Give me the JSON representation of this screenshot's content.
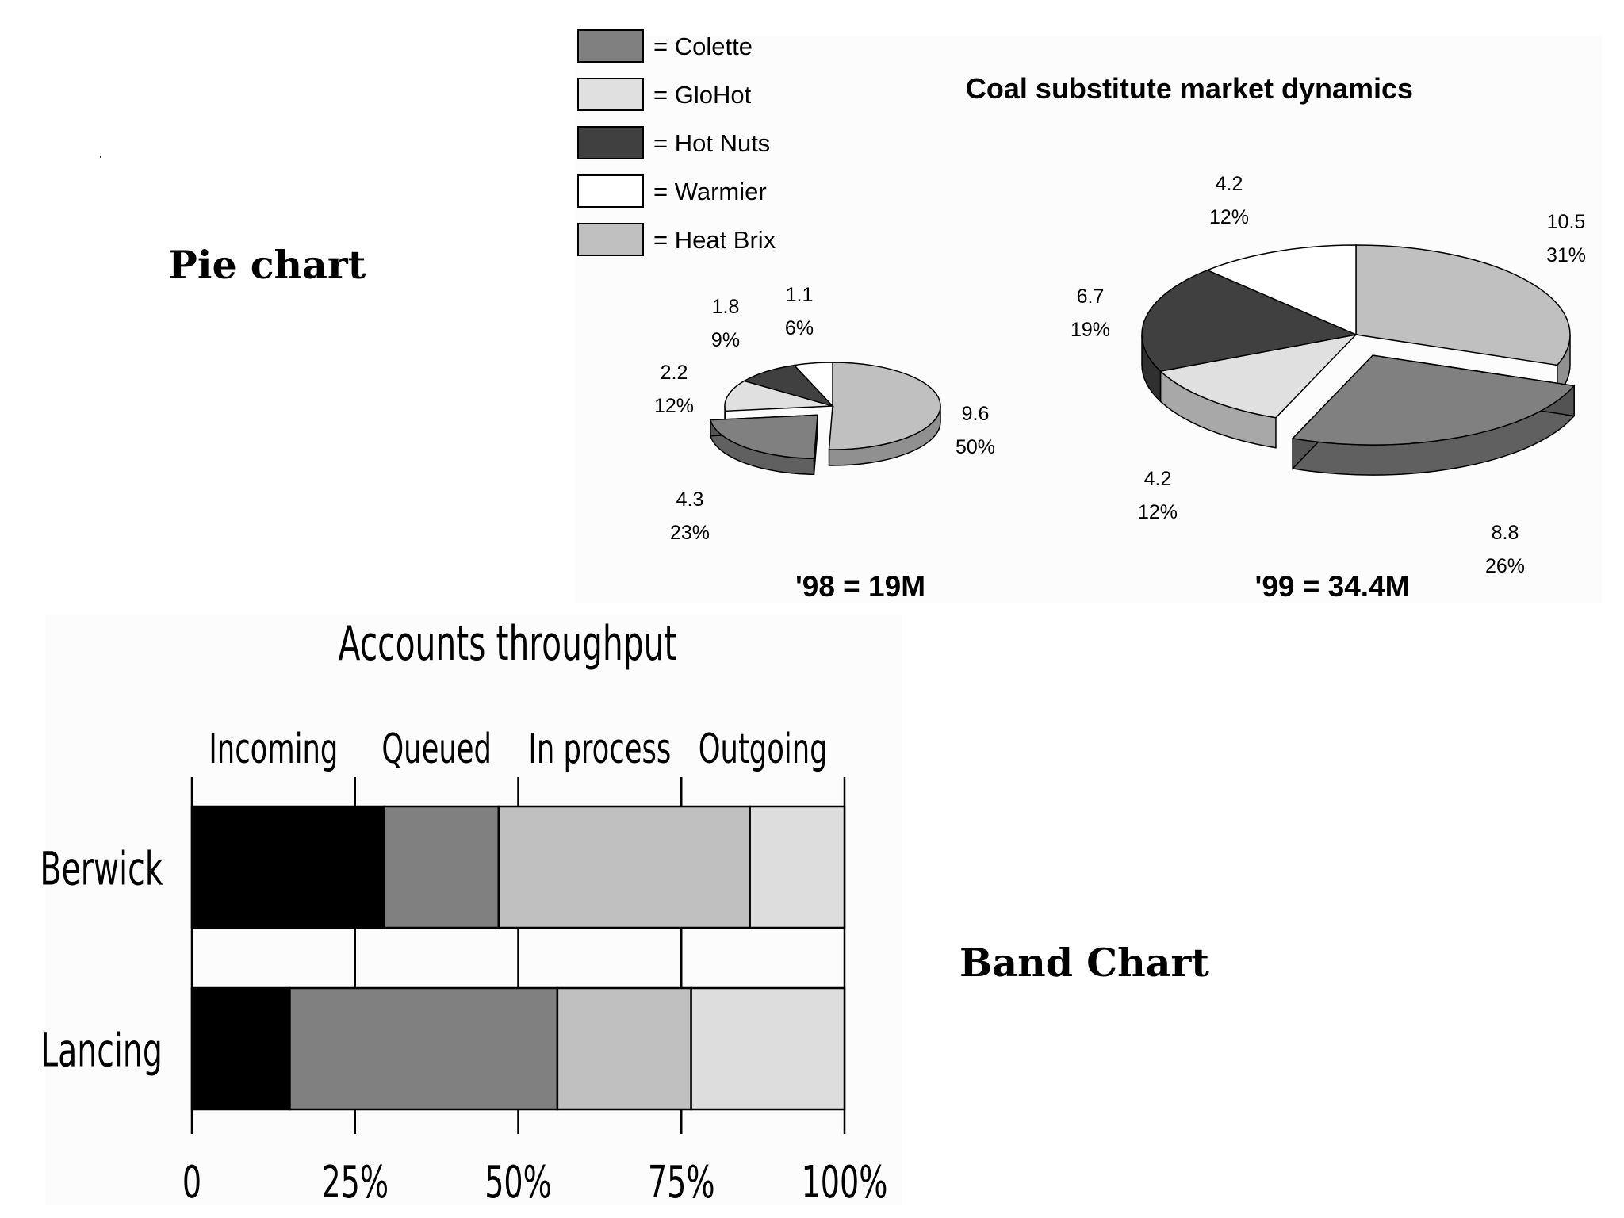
{
  "captions": {
    "pie": "Pie chart",
    "band": "Band Chart"
  },
  "chart_data": [
    {
      "type": "pie",
      "title": "Coal substitute market dynamics",
      "legend": {
        "placement": "top-left",
        "entries": [
          {
            "label": "= Colette",
            "color": "#808080"
          },
          {
            "label": "= GloHot",
            "color": "#e0e0e0"
          },
          {
            "label": "= Hot Nuts",
            "color": "#404040"
          },
          {
            "label": "= Warmier",
            "color": "#ffffff"
          },
          {
            "label": "= Heat Brix",
            "color": "#c0c0c0"
          }
        ]
      },
      "pies": [
        {
          "caption": "'98 = 19M",
          "slices": [
            {
              "value": "9.6",
              "percent": "50%",
              "color": "#c0c0c0"
            },
            {
              "value": "4.3",
              "percent": "23%",
              "color": "#808080",
              "exploded": true
            },
            {
              "value": "2.2",
              "percent": "12%",
              "color": "#e0e0e0"
            },
            {
              "value": "1.8",
              "percent": "9%",
              "color": "#404040"
            },
            {
              "value": "1.1",
              "percent": "6%",
              "color": "#ffffff"
            }
          ]
        },
        {
          "caption": "'99 = 34.4M",
          "slices": [
            {
              "value": "10.5",
              "percent": "31%",
              "color": "#c0c0c0"
            },
            {
              "value": "8.8",
              "percent": "26%",
              "color": "#808080",
              "exploded": true
            },
            {
              "value": "4.2",
              "percent": "12%",
              "color": "#e0e0e0"
            },
            {
              "value": "6.7",
              "percent": "19%",
              "color": "#404040"
            },
            {
              "value": "4.2",
              "percent": "12%",
              "color": "#ffffff"
            }
          ]
        }
      ]
    },
    {
      "type": "bar",
      "stacked": true,
      "orientation": "horizontal",
      "title": "Accounts throughput",
      "categories": [
        "Berwick",
        "Lancing"
      ],
      "series": [
        {
          "name": "Incoming",
          "color": "#000000",
          "values": [
            29.5,
            15
          ]
        },
        {
          "name": "Queued",
          "color": "#808080",
          "values": [
            17.5,
            41
          ]
        },
        {
          "name": "In process",
          "color": "#c0c0c0",
          "values": [
            38.5,
            20.5
          ]
        },
        {
          "name": "Outgoing",
          "color": "#dddddd",
          "values": [
            14.5,
            23.5
          ]
        }
      ],
      "xlim": [
        0,
        100
      ],
      "xticks": [
        "0",
        "25%",
        "50%",
        "75%",
        "100%"
      ]
    }
  ]
}
